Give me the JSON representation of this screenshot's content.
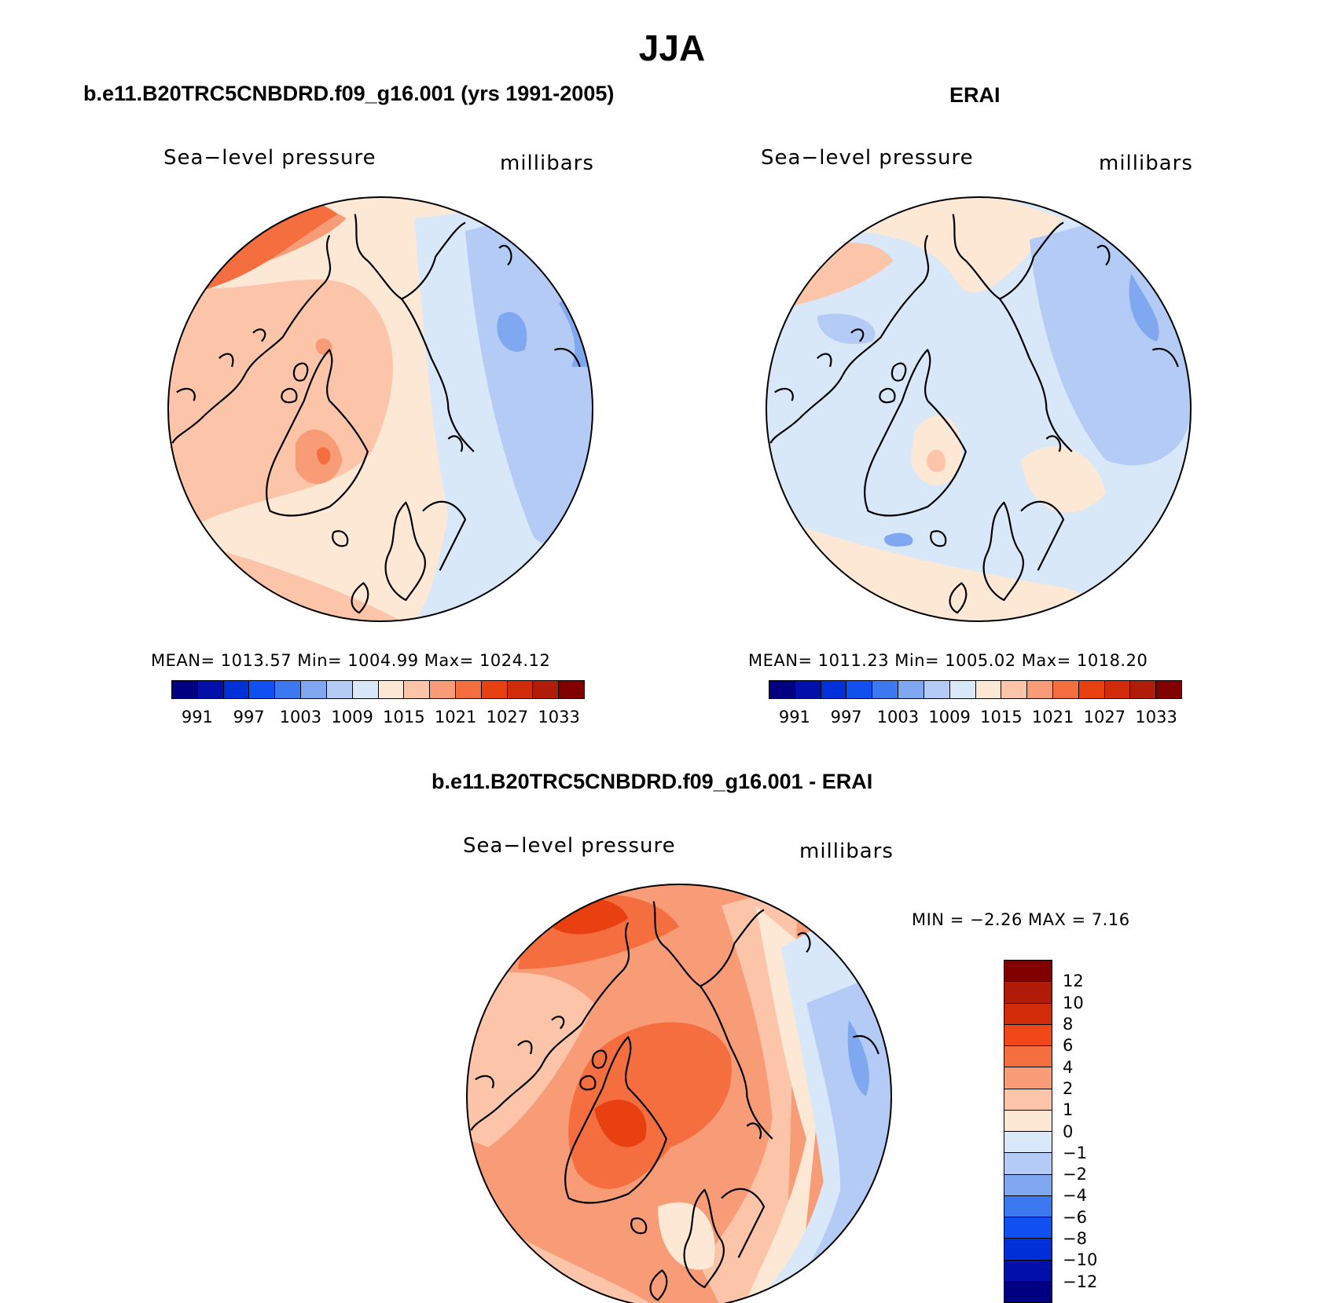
{
  "title": "JJA",
  "panels": [
    {
      "id": "model",
      "title": "b.e11.B20TRC5CNBDRD.f09_g16.001 (yrs 1991-2005)",
      "variable": "Sea−level pressure",
      "units": "millibars",
      "stats": "MEAN=  1013.57   Min=  1004.99   Max=  1024.12"
    },
    {
      "id": "obs",
      "title": "ERAI",
      "variable": "Sea−level pressure",
      "units": "millibars",
      "stats": "MEAN=  1011.23   Min=  1005.02   Max=  1018.20"
    },
    {
      "id": "diff",
      "title": "b.e11.B20TRC5CNBDRD.f09_g16.001 - ERAI",
      "variable": "Sea−level pressure",
      "units": "millibars",
      "stats": "MIN =   −2.26  MAX =    7.16"
    }
  ],
  "colorbar_abs": {
    "colors": [
      "#000080",
      "#0010a8",
      "#0030d8",
      "#1050f0",
      "#3c78f0",
      "#80a8f0",
      "#b4ccf5",
      "#d8e8f8",
      "#fde8d6",
      "#fcc4a8",
      "#f89c78",
      "#f46e40",
      "#e84010",
      "#d02c0a",
      "#b01c08",
      "#800000"
    ],
    "labels": [
      "991",
      "997",
      "1003",
      "1009",
      "1015",
      "1021",
      "1027",
      "1033"
    ]
  },
  "colorbar_diff": {
    "colors": [
      "#800000",
      "#b01c08",
      "#d02c0a",
      "#f04818",
      "#f46e40",
      "#f89c78",
      "#fcc4a8",
      "#fde8d6",
      "#d8e8f8",
      "#b4ccf5",
      "#80a8f0",
      "#3c78f0",
      "#1050f0",
      "#0030d8",
      "#0010a8",
      "#000080"
    ],
    "labels": [
      "12",
      "10",
      "8",
      "6",
      "4",
      "2",
      "1",
      "0",
      "−1",
      "−2",
      "−4",
      "−6",
      "−8",
      "−10",
      "−12"
    ]
  },
  "map_fields": {
    "model": {
      "base": "#fde8d6",
      "blobs": [
        {
          "color": "#fcc4a8",
          "shape": "a"
        },
        {
          "color": "#f89c78",
          "shape": "b"
        },
        {
          "color": "#f46e40",
          "shape": "c"
        },
        {
          "color": "#d8e8f8",
          "shape": "d"
        },
        {
          "color": "#b4ccf5",
          "shape": "e"
        },
        {
          "color": "#80a8f0",
          "shape": "f"
        }
      ]
    },
    "obs": {
      "base": "#d8e8f8",
      "blobs": [
        {
          "color": "#fde8d6",
          "shape": "g"
        },
        {
          "color": "#fcc4a8",
          "shape": "h"
        },
        {
          "color": "#b4ccf5",
          "shape": "i"
        },
        {
          "color": "#80a8f0",
          "shape": "j"
        }
      ]
    },
    "diff": {
      "base": "#f89c78",
      "blobs": [
        {
          "color": "#fcc4a8",
          "shape": "k"
        },
        {
          "color": "#f46e40",
          "shape": "l"
        },
        {
          "color": "#e84010",
          "shape": "m"
        },
        {
          "color": "#fde8d6",
          "shape": "n"
        },
        {
          "color": "#d8e8f8",
          "shape": "o"
        },
        {
          "color": "#b4ccf5",
          "shape": "p"
        },
        {
          "color": "#80a8f0",
          "shape": "q"
        }
      ]
    }
  }
}
